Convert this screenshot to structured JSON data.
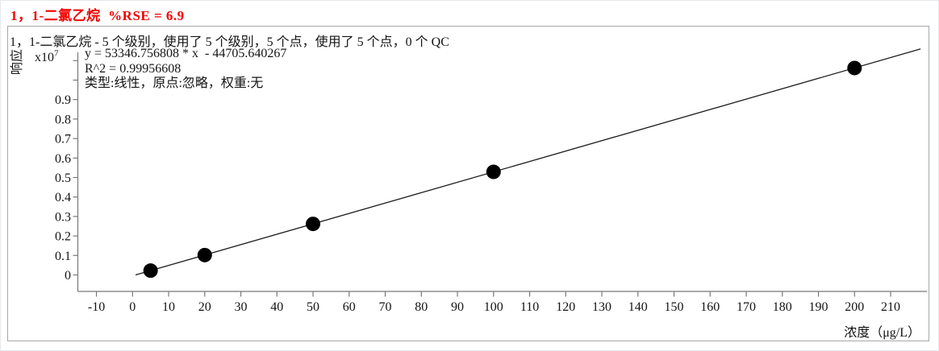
{
  "colors": {
    "title_red": "#f40000",
    "axis_gray": "#787878",
    "text_black": "#141414",
    "point_black": "#000000",
    "line_black": "#1c1c1c",
    "frame_gray": "#a8a8a8"
  },
  "header": {
    "title": "1，1-二氯乙烷  %RSE = 6.9"
  },
  "chart_data": {
    "type": "scatter",
    "title": "1，1-二氯乙烷  %RSE = 6.9",
    "subtitle": "1，1-二氯乙烷 - 5 个级别，使用了 5 个级别，5 个点，使用了 5 个点，0 个 QC",
    "annotation": {
      "equation": "y = 53346.756808 * x  - 44705.640267",
      "r2": "R^2 = 0.99956608",
      "fit": "类型:线性，原点:忽略，权重:无"
    },
    "xlabel": "浓度（μg/L）",
    "ylabel": "响应",
    "y_multiplier": {
      "base": "x10",
      "exp": "7"
    },
    "x_ticks": [
      -10,
      0,
      10,
      20,
      30,
      40,
      50,
      60,
      70,
      80,
      90,
      100,
      110,
      120,
      130,
      140,
      150,
      160,
      170,
      180,
      190,
      200,
      210
    ],
    "y_ticks": [
      0,
      0.1,
      0.2,
      0.3,
      0.4,
      0.5,
      0.6,
      0.7,
      0.8,
      0.9,
      1.0,
      1.1
    ],
    "y_tick_labels": [
      "0",
      "0.1",
      "0.2",
      "0.3",
      "0.4",
      "0.5",
      "0.6",
      "0.7",
      "0.8",
      "0.9",
      "",
      ""
    ],
    "xlim": [
      -15.2,
      220
    ],
    "ylim_x1e7": [
      -0.085,
      1.143
    ],
    "grid": false,
    "legend": "none",
    "points": {
      "x": [
        5,
        20,
        50,
        100,
        200
      ],
      "y_x1e7": [
        0.022,
        0.102,
        0.262,
        0.529,
        1.062
      ]
    },
    "fit_line": {
      "slope": 53346.756808,
      "intercept": -44705.640267,
      "r_squared": 0.99956608,
      "x_start": 0.84,
      "x_end": 218.3
    }
  }
}
